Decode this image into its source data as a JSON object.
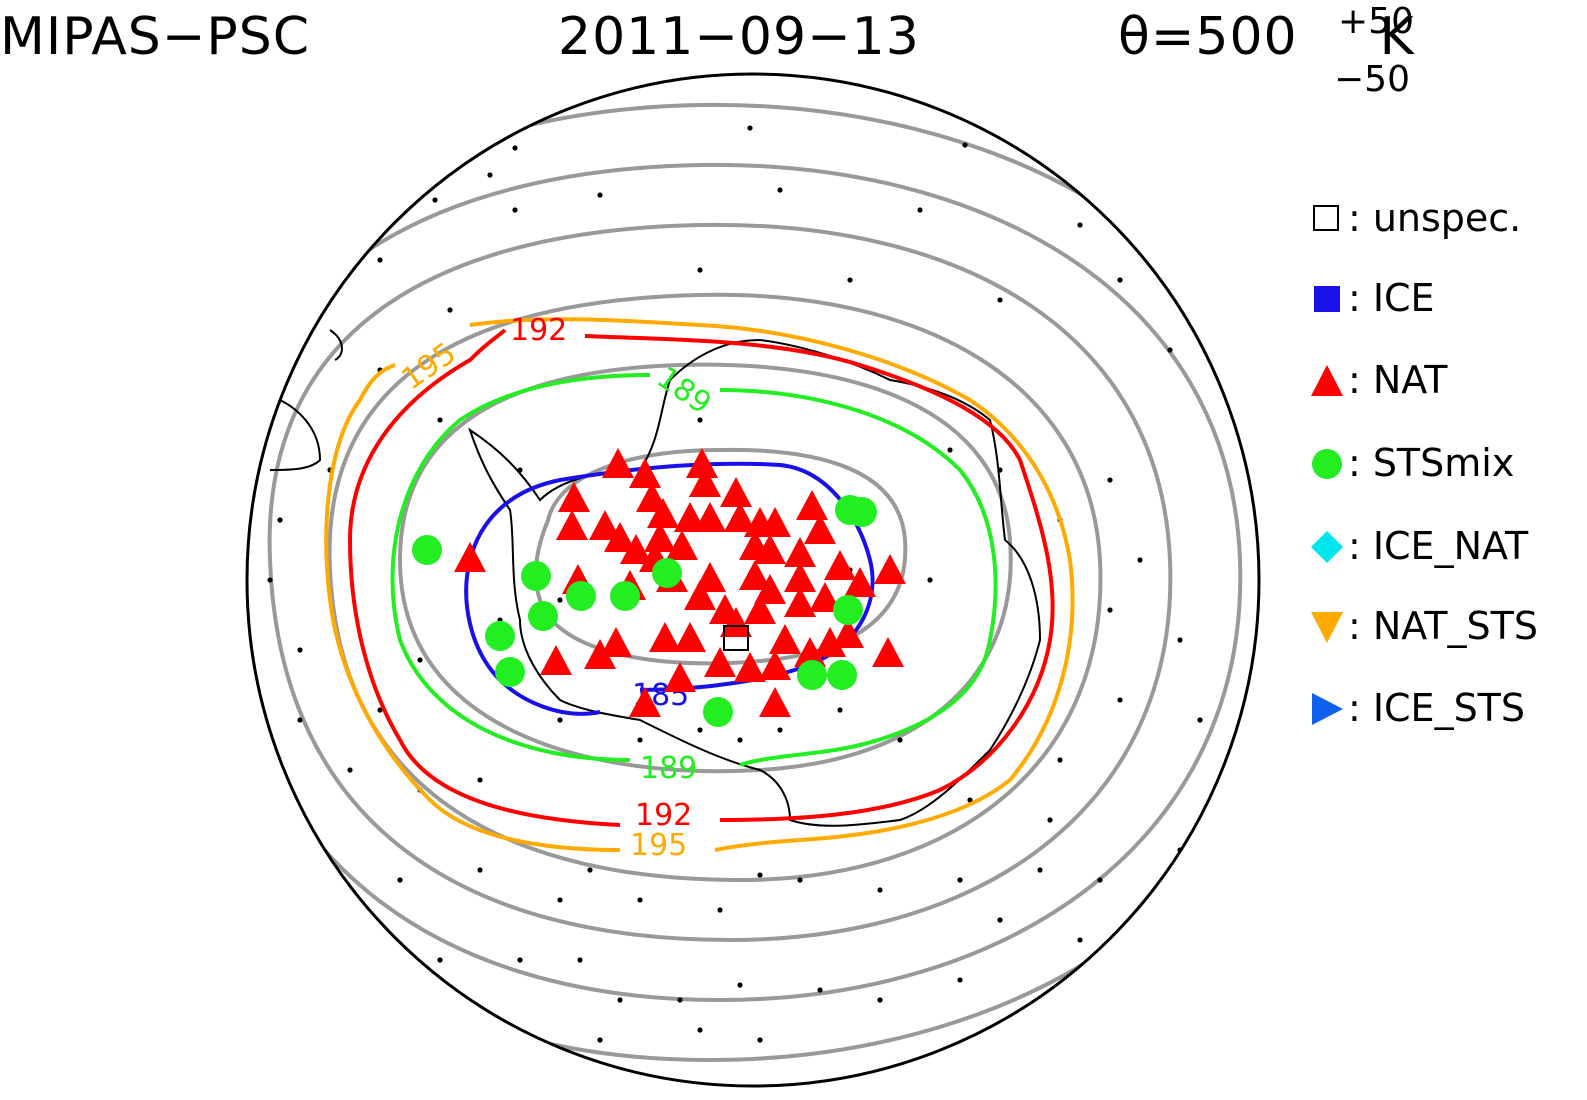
{
  "title": {
    "instrument": "MIPAS−PSC",
    "date": "2011−09−13",
    "theta_prefix": "θ=500",
    "theta_plus": "+50",
    "theta_minus": "−50",
    "theta_unit": "K"
  },
  "legend": [
    {
      "label": "unspec.",
      "symbol": "square-open",
      "color": "#000000"
    },
    {
      "label": "ICE",
      "symbol": "square",
      "color": "#1a10e8"
    },
    {
      "label": "NAT",
      "symbol": "triangle-up",
      "color": "#ff0000"
    },
    {
      "label": "STSmix",
      "symbol": "circle",
      "color": "#22ee22"
    },
    {
      "label": "ICE_NAT",
      "symbol": "diamond",
      "color": "#00e5ee"
    },
    {
      "label": "NAT_STS",
      "symbol": "triangle-down",
      "color": "#ffaa00"
    },
    {
      "label": "ICE_STS",
      "symbol": "triangle-right",
      "color": "#1060f0"
    }
  ],
  "contours": [
    {
      "value": "185",
      "color": "#1a10e8"
    },
    {
      "value": "189",
      "color": "#22ee22"
    },
    {
      "value": "192",
      "color": "#ff0000"
    },
    {
      "value": "195",
      "color": "#ffaa00"
    }
  ],
  "colors": {
    "background_contours": "#999999",
    "coastline": "#000000",
    "nat": "#ff0000",
    "sts": "#22ee22"
  }
}
